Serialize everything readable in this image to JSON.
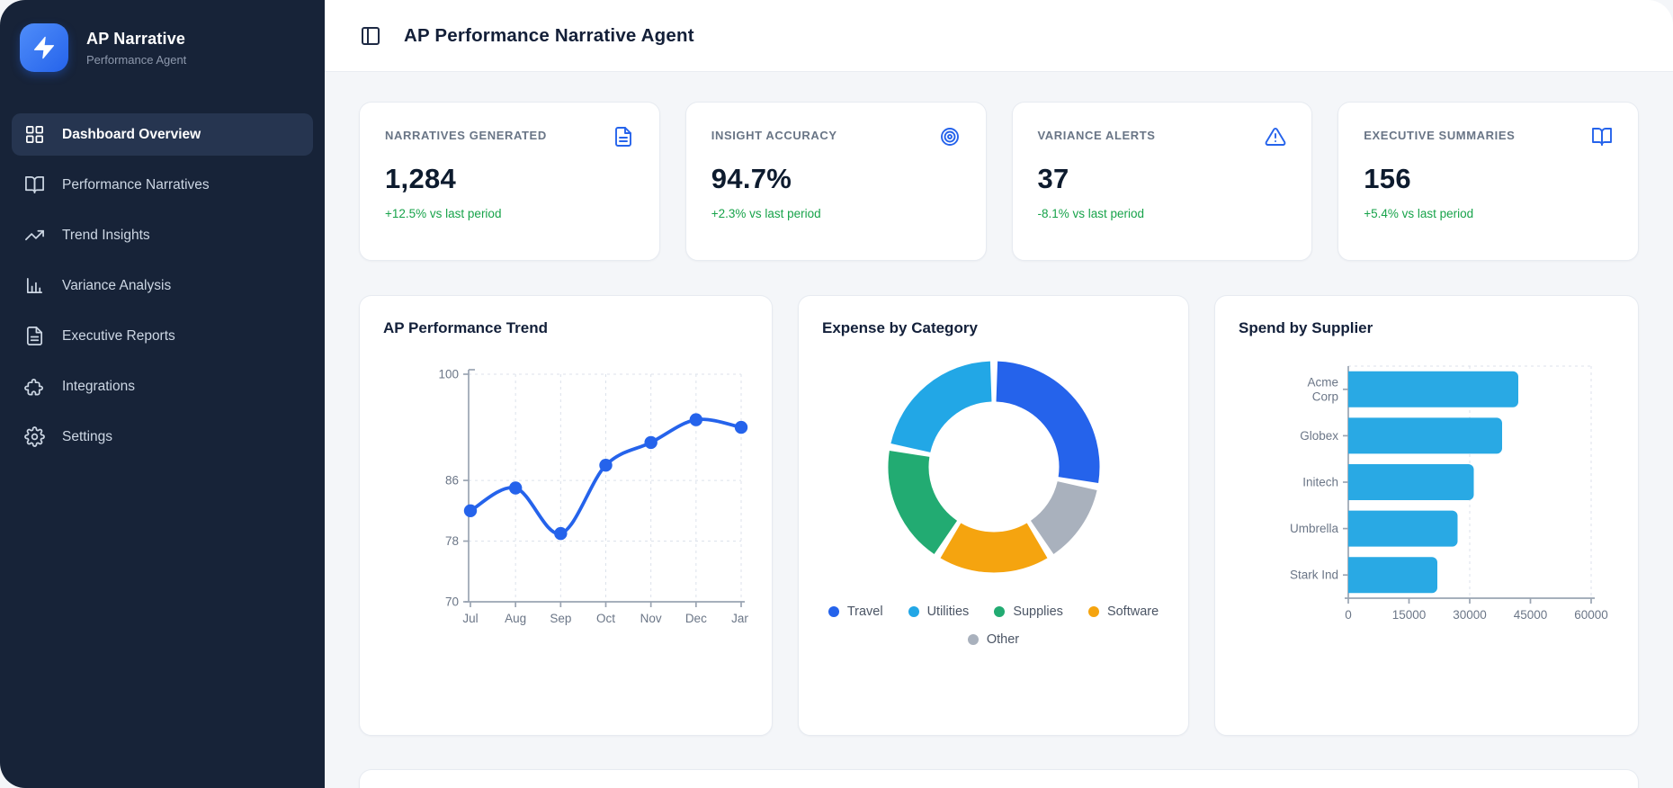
{
  "app": {
    "name": "AP Narrative",
    "tagline": "Performance Agent"
  },
  "header": {
    "title": "AP Performance Narrative Agent",
    "toggle_icon": "panel-left-icon"
  },
  "sidebar": {
    "items": [
      {
        "label": "Dashboard Overview",
        "icon": "grid-icon",
        "active": true
      },
      {
        "label": "Performance Narratives",
        "icon": "book-open-icon",
        "active": false
      },
      {
        "label": "Trend Insights",
        "icon": "trending-up-icon",
        "active": false
      },
      {
        "label": "Variance Analysis",
        "icon": "bar-chart-icon",
        "active": false
      },
      {
        "label": "Executive Reports",
        "icon": "file-text-icon",
        "active": false
      },
      {
        "label": "Integrations",
        "icon": "puzzle-icon",
        "active": false
      },
      {
        "label": "Settings",
        "icon": "gear-icon",
        "active": false
      }
    ]
  },
  "stats": [
    {
      "label": "NARRATIVES GENERATED",
      "value": "1,284",
      "delta": "+12.5% vs last period",
      "icon": "file-text-icon"
    },
    {
      "label": "INSIGHT ACCURACY",
      "value": "94.7%",
      "delta": "+2.3% vs last period",
      "icon": "target-icon"
    },
    {
      "label": "VARIANCE ALERTS",
      "value": "37",
      "delta": "-8.1% vs last period",
      "icon": "alert-triangle-icon"
    },
    {
      "label": "EXECUTIVE SUMMARIES",
      "value": "156",
      "delta": "+5.4% vs last period",
      "icon": "book-open-icon"
    }
  ],
  "colors": {
    "sidebar_bg": "#172338",
    "accent_blue": "#2563eb",
    "positive_green": "#17a34a",
    "bar_blue": "#29a9e4",
    "axis_gray": "#9aa4b2",
    "tick_label_gray": "#6b7687"
  },
  "chart_data": [
    {
      "type": "line",
      "title": "AP Performance Trend",
      "x": [
        "Jul",
        "Aug",
        "Sep",
        "Oct",
        "Nov",
        "Dec",
        "Jan"
      ],
      "values": [
        82,
        85,
        79,
        88,
        91,
        94,
        93
      ],
      "ylim": [
        70,
        100
      ],
      "yticks": [
        100,
        86,
        78,
        70
      ],
      "grid": true,
      "line_color": "#2563eb",
      "legend": "none"
    },
    {
      "type": "pie",
      "title": "Expense by Category",
      "donut": true,
      "labels": [
        "Travel",
        "Utilities",
        "Supplies",
        "Software",
        "Other"
      ],
      "values": [
        28,
        22,
        19,
        18,
        13
      ],
      "unit": "percent",
      "colors": [
        "#2563eb",
        "#22a7e6",
        "#22ab72",
        "#f5a40f",
        "#a9b1bd"
      ],
      "draw_order_clockwise": [
        "Travel",
        "Other",
        "Software",
        "Supplies",
        "Utilities"
      ],
      "legend_position": "bottom"
    },
    {
      "type": "bar",
      "title": "Spend by Supplier",
      "orientation": "horizontal",
      "categories": [
        "Acme Corp",
        "Globex",
        "Initech",
        "Umbrella",
        "Stark Ind"
      ],
      "category_tick_lines": [
        [
          "Acme",
          "Corp"
        ],
        [
          "Globex"
        ],
        [
          "Initech"
        ],
        [
          "Umbrella"
        ],
        [
          "Stark Ind"
        ]
      ],
      "values": [
        42000,
        38000,
        31000,
        27000,
        22000
      ],
      "xlim": [
        0,
        60000
      ],
      "xticks": [
        0,
        15000,
        30000,
        45000,
        60000
      ],
      "gridlines_at": [
        30000,
        60000
      ],
      "bar_color": "#29a9e4"
    }
  ]
}
